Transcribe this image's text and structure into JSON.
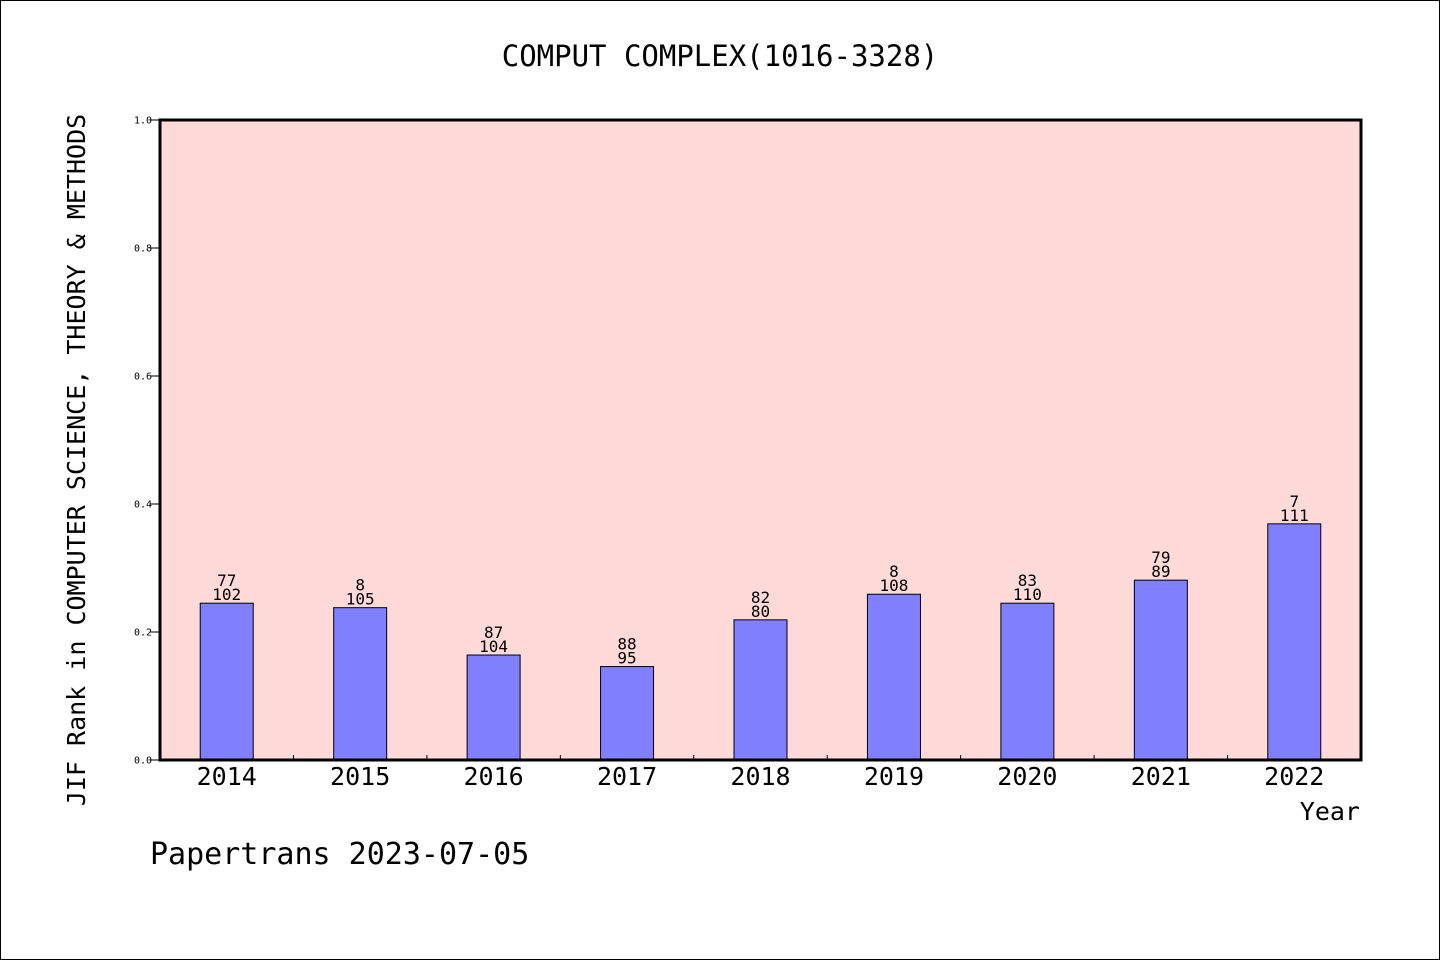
{
  "chart_data": {
    "type": "bar",
    "title": "COMPUT COMPLEX(1016-3328)",
    "xlabel": "Year",
    "ylabel": "JIF Rank in COMPUTER SCIENCE, THEORY & METHODS",
    "categories": [
      "2014",
      "2015",
      "2016",
      "2017",
      "2018",
      "2019",
      "2020",
      "2021",
      "2022"
    ],
    "values": [
      0.245,
      0.238,
      0.164,
      0.146,
      0.219,
      0.259,
      0.245,
      0.281,
      0.369
    ],
    "labels": [
      {
        "top": "77",
        "bottom": "102"
      },
      {
        "top": "8",
        "bottom": "105"
      },
      {
        "top": "87",
        "bottom": "104"
      },
      {
        "top": "88",
        "bottom": "95"
      },
      {
        "top": "82",
        "bottom": "80"
      },
      {
        "top": "8",
        "bottom": "108"
      },
      {
        "top": "83",
        "bottom": "110"
      },
      {
        "top": "79",
        "bottom": "89"
      },
      {
        "top": "7",
        "bottom": "111"
      }
    ],
    "ylim": [
      0,
      1.0
    ],
    "yticks": [
      "0.0",
      "0.2",
      "0.4",
      "0.6",
      "0.8",
      "1.0"
    ],
    "grid": false,
    "colors": {
      "plot_background": "#ffdad8",
      "bar": "#8080ff",
      "bar_edge": "#000000"
    }
  },
  "footer": "Papertrans 2023-07-05"
}
